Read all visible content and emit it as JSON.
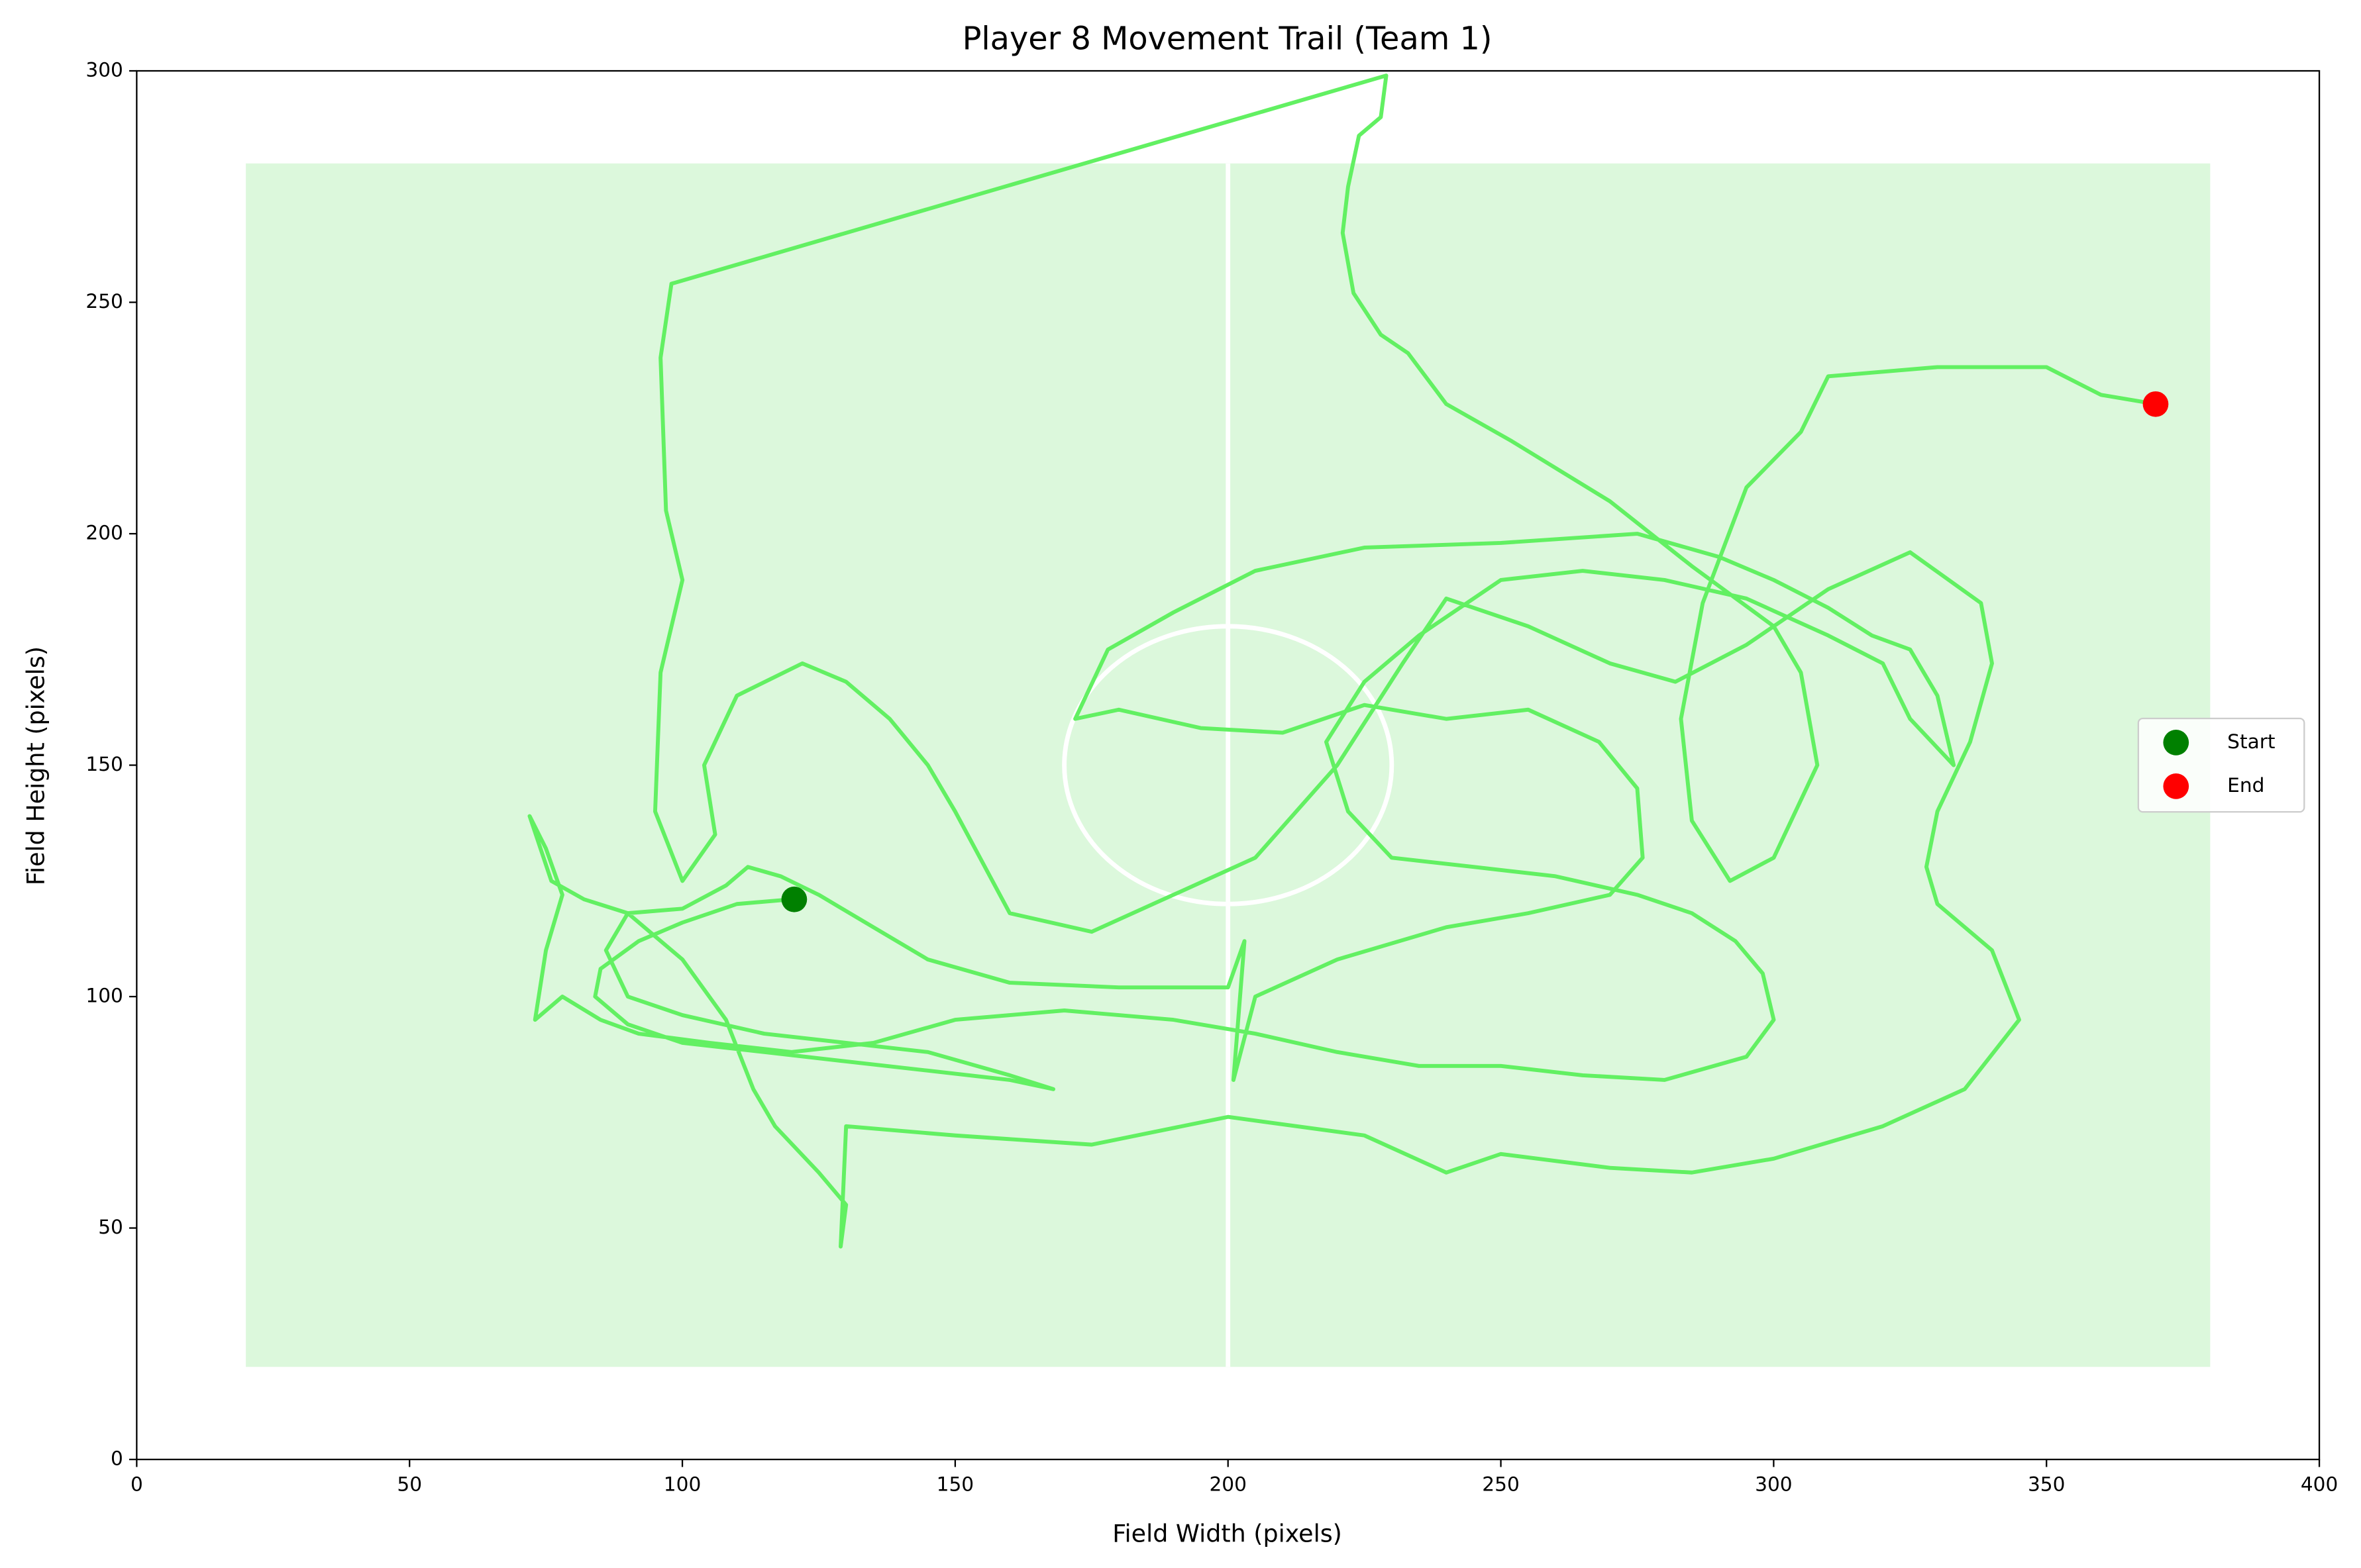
{
  "chart_data": {
    "type": "line",
    "title": "Player 8 Movement Trail (Team 1)",
    "xlabel": "Field Width (pixels)",
    "ylabel": "Field Height (pixels)",
    "xlim": [
      0,
      400
    ],
    "ylim": [
      0,
      300
    ],
    "xticks": [
      0,
      50,
      100,
      150,
      200,
      250,
      300,
      350,
      400
    ],
    "yticks": [
      0,
      50,
      100,
      150,
      200,
      250,
      300
    ],
    "field": {
      "color": "#dcf8dc",
      "line_color": "#ffffff",
      "x": [
        20,
        380
      ],
      "y": [
        20,
        280
      ],
      "center": [
        200,
        150
      ],
      "circle_radius": 30
    },
    "trail": {
      "color": "#62f062",
      "x": [
        120,
        110,
        100,
        92,
        85,
        84,
        90,
        100,
        115,
        130,
        145,
        160,
        168,
        160,
        145,
        130,
        115,
        100,
        90,
        86,
        90,
        100,
        108,
        112,
        118,
        125,
        135,
        145,
        160,
        180,
        200,
        203,
        201,
        205,
        220,
        240,
        255,
        270,
        276,
        275,
        268,
        255,
        240,
        225,
        210,
        195,
        180,
        172,
        178,
        190,
        205,
        225,
        250,
        275,
        290,
        300,
        310,
        318,
        325,
        330,
        332,
        333,
        325,
        320,
        310,
        295,
        280,
        265,
        250,
        235,
        225,
        218,
        222,
        230,
        245,
        260,
        275,
        285,
        293,
        298,
        300,
        295,
        280,
        265,
        250,
        235,
        220,
        205,
        190,
        170,
        150,
        135,
        120,
        105,
        92,
        85,
        78,
        73,
        75,
        78,
        75,
        72,
        76,
        82,
        90,
        100,
        108,
        113,
        117,
        125,
        130,
        129,
        130,
        150,
        175,
        200,
        225,
        240,
        250,
        270,
        285,
        300,
        320,
        335,
        345,
        340,
        330,
        328,
        330,
        336,
        340,
        338,
        325,
        310,
        295,
        282,
        270,
        255,
        240,
        232,
        220,
        205,
        190,
        175,
        160,
        150,
        145,
        138,
        130,
        122,
        110,
        104,
        106,
        100,
        95,
        96,
        100,
        97,
        96,
        98,
        229,
        228,
        224,
        222,
        221,
        223,
        228,
        233,
        240,
        252,
        270,
        285,
        300,
        305,
        308,
        300,
        292,
        285,
        283,
        287,
        295,
        305,
        310,
        330,
        350,
        360,
        370
      ],
      "y": [
        121,
        120,
        116,
        112,
        106,
        100,
        94,
        90,
        88,
        86,
        84,
        82,
        80,
        83,
        88,
        90,
        92,
        96,
        100,
        110,
        118,
        119,
        124,
        128,
        126,
        122,
        115,
        108,
        103,
        102,
        102,
        112,
        82,
        100,
        108,
        115,
        118,
        122,
        130,
        145,
        155,
        162,
        160,
        163,
        157,
        158,
        162,
        160,
        175,
        183,
        192,
        197,
        198,
        200,
        195,
        190,
        184,
        178,
        175,
        165,
        155,
        150,
        160,
        172,
        178,
        186,
        190,
        192,
        190,
        178,
        168,
        155,
        140,
        130,
        128,
        126,
        122,
        118,
        112,
        105,
        95,
        87,
        82,
        83,
        85,
        85,
        88,
        92,
        95,
        97,
        95,
        90,
        88,
        90,
        92,
        95,
        100,
        95,
        110,
        122,
        132,
        139,
        125,
        121,
        118,
        108,
        95,
        80,
        72,
        62,
        55,
        46,
        72,
        70,
        68,
        74,
        70,
        62,
        66,
        63,
        62,
        65,
        72,
        80,
        95,
        110,
        120,
        128,
        140,
        155,
        172,
        185,
        196,
        188,
        176,
        168,
        172,
        180,
        186,
        172,
        150,
        130,
        122,
        114,
        118,
        140,
        150,
        160,
        168,
        172,
        165,
        150,
        135,
        125,
        140,
        170,
        190,
        205,
        238,
        254,
        299,
        290,
        286,
        275,
        265,
        252,
        243,
        239,
        228,
        220,
        207,
        193,
        180,
        170,
        150,
        130,
        125,
        138,
        160,
        185,
        210,
        222,
        234,
        236,
        236,
        230,
        228
      ]
    },
    "series": [
      {
        "name": "Start",
        "color": "#008000",
        "x": [
          120.5
        ],
        "y": [
          121
        ]
      },
      {
        "name": "End",
        "color": "#ff0000",
        "x": [
          370
        ],
        "y": [
          228
        ]
      }
    ],
    "legend": "center right"
  }
}
